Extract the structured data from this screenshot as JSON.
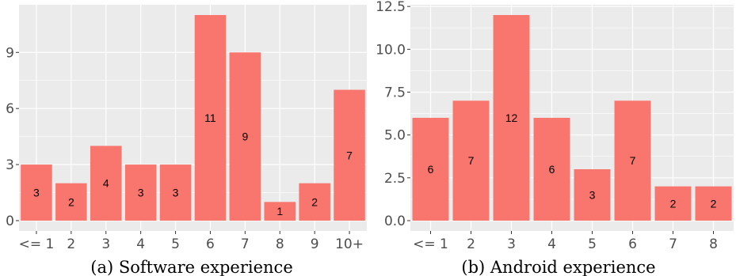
{
  "colors": {
    "panel": "#ebebeb",
    "grid": "#ffffff",
    "bar": "#f8766d",
    "tick_text": "#4d4d4d"
  },
  "chart_data": [
    {
      "type": "bar",
      "caption": "(a) Software experience",
      "categories": [
        "<= 1",
        "2",
        "3",
        "4",
        "5",
        "6",
        "7",
        "8",
        "9",
        "10+"
      ],
      "values": [
        3,
        2,
        4,
        3,
        3,
        11,
        9,
        1,
        2,
        7
      ],
      "data_labels": [
        "3",
        "2",
        "4",
        "3",
        "3",
        "11",
        "9",
        "1",
        "2",
        "7"
      ],
      "yticks": [
        0,
        3,
        6,
        9
      ],
      "ytick_labels": [
        "0",
        "3",
        "6",
        "9"
      ],
      "ylim": [
        -0.55,
        11.55
      ],
      "grid": true,
      "legend": "none"
    },
    {
      "type": "bar",
      "caption": "(b) Android experience",
      "categories": [
        "<= 1",
        "2",
        "3",
        "4",
        "5",
        "6",
        "7",
        "8"
      ],
      "values": [
        6,
        7,
        12,
        6,
        3,
        7,
        2,
        2
      ],
      "data_labels": [
        "6",
        "7",
        "12",
        "6",
        "3",
        "7",
        "2",
        "2"
      ],
      "yticks": [
        0,
        2.5,
        5,
        7.5,
        10,
        12.5
      ],
      "ytick_labels": [
        "0.0",
        "2.5",
        "5.0",
        "7.5",
        "10.0",
        "12.5"
      ],
      "ylim": [
        -0.6,
        12.6
      ],
      "grid": true,
      "legend": "none"
    }
  ]
}
